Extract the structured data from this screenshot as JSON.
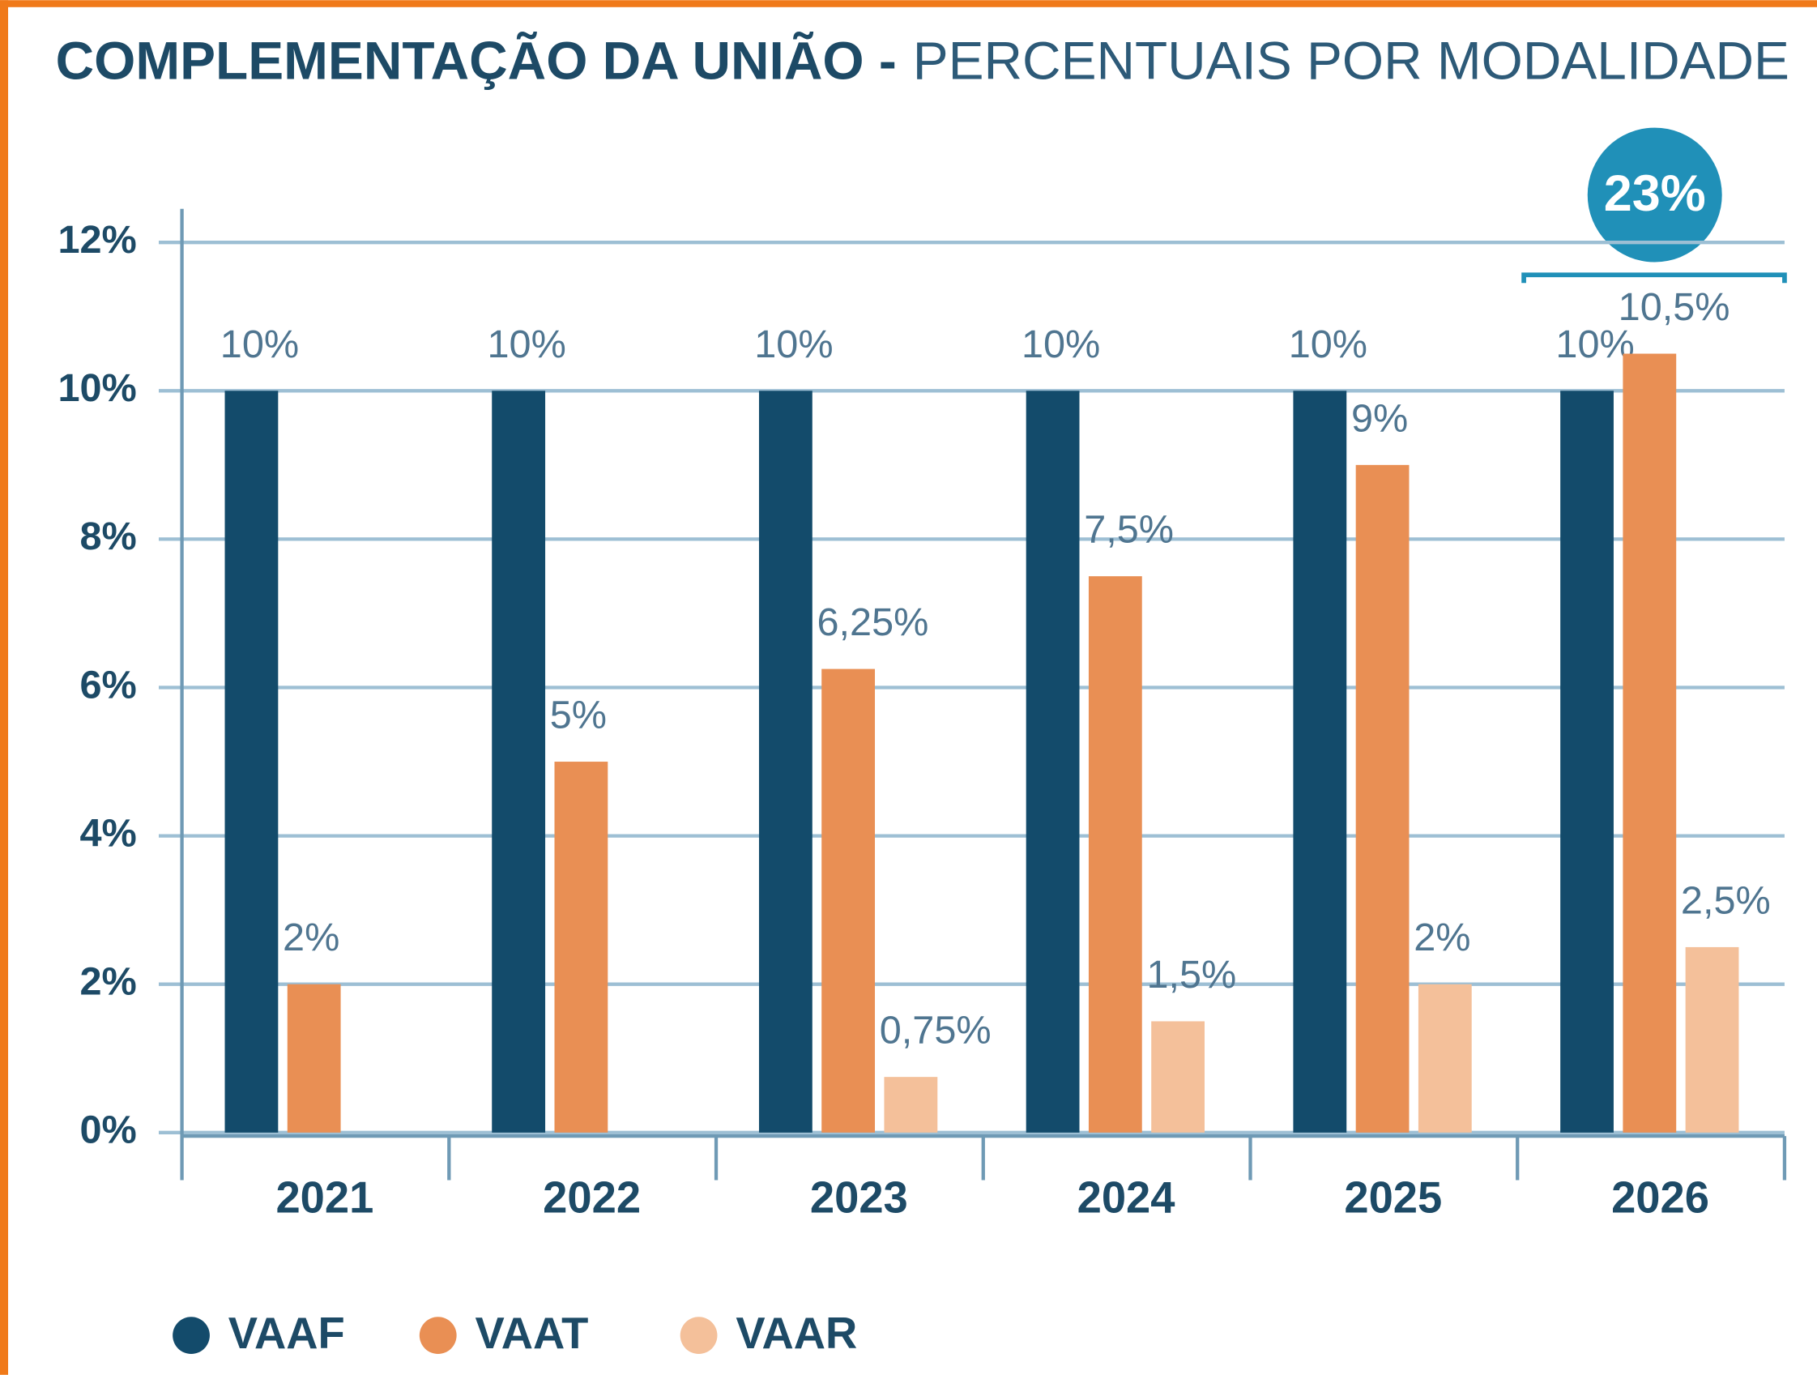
{
  "chart_data": {
    "type": "bar",
    "title": "COMPLEMENTAÇÃO DA UNIÃO -",
    "subtitle": "PERCENTUAIS POR MODALIDADE",
    "annotation": {
      "value": 23,
      "label": "23%"
    },
    "categories": [
      "2021",
      "2022",
      "2023",
      "2024",
      "2025",
      "2026"
    ],
    "series": [
      {
        "name": "VAAF",
        "color": "#134b6b",
        "values": [
          10,
          10,
          10,
          10,
          10,
          10
        ],
        "value_labels": [
          "10%",
          "10%",
          "10%",
          "10%",
          "10%",
          "10%"
        ]
      },
      {
        "name": "VAAT",
        "color": "#e98f54",
        "values": [
          2,
          5,
          6.25,
          7.5,
          9,
          10.5
        ],
        "value_labels": [
          "2%",
          "5%",
          "6,25%",
          "7,5%",
          "9%",
          "10,5%"
        ]
      },
      {
        "name": "VAAR",
        "color": "#f4c09a",
        "values": [
          null,
          null,
          0.75,
          1.5,
          2,
          2.5
        ],
        "value_labels": [
          null,
          null,
          "0,75%",
          "1,5%",
          "2%",
          "2,5%"
        ]
      }
    ],
    "ylim": [
      0,
      12
    ],
    "yticks": [
      {
        "value": 0,
        "label": "0%"
      },
      {
        "value": 2,
        "label": "2%"
      },
      {
        "value": 4,
        "label": "4%"
      },
      {
        "value": 6,
        "label": "6%"
      },
      {
        "value": 8,
        "label": "8%"
      },
      {
        "value": 10,
        "label": "10%"
      },
      {
        "value": 12,
        "label": "12%"
      }
    ],
    "grid": true,
    "legend": "bottom"
  }
}
